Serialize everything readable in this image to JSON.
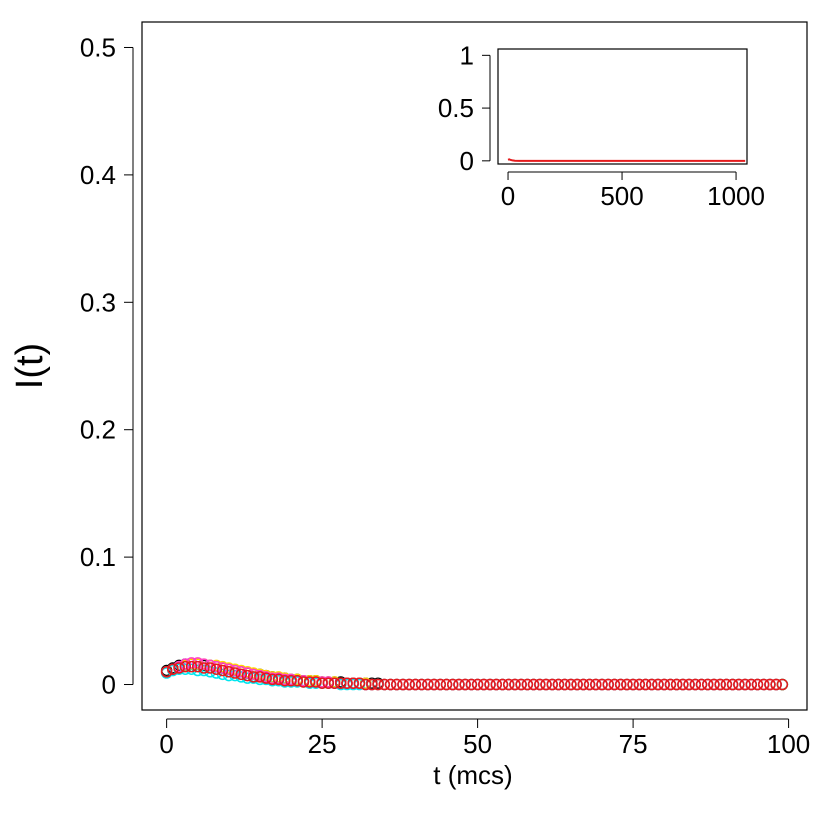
{
  "chart_data": [
    {
      "type": "scatter",
      "xlabel": "t (mcs)",
      "ylabel": "I(t)",
      "xlim": [
        -3.96,
        102.96
      ],
      "ylim": [
        -0.02,
        0.52
      ],
      "xticks": [
        0,
        25,
        50,
        75,
        100
      ],
      "yticks": [
        0.0,
        0.1,
        0.2,
        0.3,
        0.4,
        0.5
      ],
      "x": [
        0,
        1,
        2,
        3,
        4,
        5,
        6,
        7,
        8,
        9,
        10,
        11,
        12,
        13,
        14,
        15,
        16,
        17,
        18,
        19,
        20,
        21,
        22,
        23,
        24,
        25,
        26,
        27,
        28,
        29,
        30,
        31,
        32,
        33,
        34,
        35,
        36,
        37,
        38,
        39,
        40,
        41,
        42,
        43,
        44,
        45,
        46,
        47,
        48,
        49,
        50,
        51,
        52,
        53,
        54,
        55,
        56,
        57,
        58,
        59,
        60,
        61,
        62,
        63,
        64,
        65,
        66,
        67,
        68,
        69,
        70,
        71,
        72,
        73,
        74,
        75,
        76,
        77,
        78,
        79,
        80,
        81,
        82,
        83,
        84,
        85,
        86,
        87,
        88,
        89,
        90,
        91,
        92,
        93,
        94,
        95,
        96,
        97,
        98,
        99
      ],
      "series": [
        {
          "color": "#000000",
          "values": [
            0.011,
            0.013,
            0.015,
            0.016,
            0.016,
            0.016,
            0.015,
            0.015,
            0.014,
            0.013,
            0.012,
            0.011,
            0.01,
            0.009,
            0.008,
            0.008,
            0.007,
            0.006,
            0.005,
            0.005,
            0.004,
            0.004,
            0.003,
            0.003,
            0.003,
            0.002,
            0.002,
            0.002,
            0.002,
            0.001,
            0.001,
            0.001,
            0.001,
            0.001,
            0.001,
            0,
            0,
            0,
            0,
            0,
            0,
            0,
            0,
            0,
            0,
            0,
            0,
            0,
            0,
            0,
            0,
            0,
            0,
            0,
            0,
            0,
            0,
            0,
            0,
            0,
            0,
            0,
            0,
            0,
            0,
            0,
            0,
            0,
            0,
            0,
            0,
            0,
            0,
            0,
            0,
            0,
            0,
            0,
            0,
            0,
            0,
            0,
            0,
            0,
            0,
            0,
            0,
            0,
            0,
            0,
            0,
            0,
            0,
            0,
            0,
            0,
            0,
            0,
            0,
            0
          ]
        },
        {
          "color": "#ffd700",
          "values": [
            0.01,
            0.012,
            0.014,
            0.015,
            0.016,
            0.016,
            0.016,
            0.015,
            0.015,
            0.014,
            0.013,
            0.012,
            0.011,
            0.01,
            0.009,
            0.008,
            0.007,
            0.006,
            0.006,
            0.005,
            0.004,
            0.004,
            0.003,
            0.003,
            0.003,
            0.002,
            0.002,
            0.002,
            0.001,
            0.001,
            0.001,
            0.001,
            0.001,
            0,
            0,
            0,
            0,
            0,
            0,
            0,
            0,
            0,
            0,
            0,
            0,
            0,
            0,
            0,
            0,
            0,
            0,
            0,
            0,
            0,
            0,
            0,
            0,
            0,
            0,
            0,
            0,
            0,
            0,
            0,
            0,
            0,
            0,
            0,
            0,
            0,
            0,
            0,
            0,
            0,
            0,
            0,
            0,
            0,
            0,
            0,
            0,
            0,
            0,
            0,
            0,
            0,
            0,
            0,
            0,
            0,
            0,
            0,
            0,
            0,
            0,
            0,
            0,
            0,
            0,
            0
          ]
        },
        {
          "color": "#00e5ee",
          "values": [
            0.009,
            0.011,
            0.012,
            0.012,
            0.012,
            0.011,
            0.011,
            0.01,
            0.009,
            0.008,
            0.007,
            0.007,
            0.006,
            0.005,
            0.005,
            0.004,
            0.004,
            0.003,
            0.003,
            0.002,
            0.002,
            0.002,
            0.002,
            0.001,
            0.001,
            0.001,
            0.001,
            0.001,
            0,
            0,
            0,
            0,
            0,
            0,
            0,
            0,
            0,
            0,
            0,
            0,
            0,
            0,
            0,
            0,
            0,
            0,
            0,
            0,
            0,
            0,
            0,
            0,
            0,
            0,
            0,
            0,
            0,
            0,
            0,
            0,
            0,
            0,
            0,
            0,
            0,
            0,
            0,
            0,
            0,
            0,
            0,
            0,
            0,
            0,
            0,
            0,
            0,
            0,
            0,
            0,
            0,
            0,
            0,
            0,
            0,
            0,
            0,
            0,
            0,
            0,
            0,
            0,
            0,
            0,
            0,
            0,
            0,
            0,
            0,
            0
          ]
        },
        {
          "color": "#ff3ec8",
          "values": [
            0.01,
            0.012,
            0.014,
            0.016,
            0.017,
            0.017,
            0.016,
            0.015,
            0.014,
            0.013,
            0.012,
            0.011,
            0.01,
            0.009,
            0.008,
            0.007,
            0.006,
            0.005,
            0.005,
            0.004,
            0.004,
            0.003,
            0.003,
            0.002,
            0.002,
            0.002,
            0.002,
            0.001,
            0.001,
            0.001,
            0.001,
            0.001,
            0,
            0,
            0,
            0,
            0,
            0,
            0,
            0,
            0,
            0,
            0,
            0,
            0,
            0,
            0,
            0,
            0,
            0,
            0,
            0,
            0,
            0,
            0,
            0,
            0,
            0,
            0,
            0,
            0,
            0,
            0,
            0,
            0,
            0,
            0,
            0,
            0,
            0,
            0,
            0,
            0,
            0,
            0,
            0,
            0,
            0,
            0,
            0,
            0,
            0,
            0,
            0,
            0,
            0,
            0,
            0,
            0,
            0,
            0,
            0,
            0,
            0,
            0,
            0,
            0,
            0,
            0
          ]
        },
        {
          "color": "#e41a1c",
          "values": [
            0.01,
            0.012,
            0.013,
            0.014,
            0.014,
            0.014,
            0.013,
            0.013,
            0.012,
            0.011,
            0.01,
            0.009,
            0.008,
            0.007,
            0.006,
            0.006,
            0.005,
            0.004,
            0.004,
            0.003,
            0.003,
            0.003,
            0.002,
            0.002,
            0.002,
            0.001,
            0.001,
            0.001,
            0.001,
            0.001,
            0.001,
            0.001,
            0,
            0,
            0,
            0,
            0,
            0,
            0,
            0,
            0,
            0,
            0,
            0,
            0,
            0,
            0,
            0,
            0,
            0,
            0,
            0,
            0,
            0,
            0,
            0,
            0,
            0,
            0,
            0,
            0,
            0,
            0,
            0,
            0,
            0,
            0,
            0,
            0,
            0,
            0,
            0,
            0,
            0,
            0,
            0,
            0,
            0,
            0,
            0,
            0,
            0,
            0,
            0,
            0,
            0,
            0,
            0,
            0,
            0,
            0,
            0,
            0,
            0,
            0,
            0,
            0,
            0,
            0,
            0
          ]
        }
      ]
    },
    {
      "type": "line",
      "xlim": [
        -44,
        1048
      ],
      "ylim": [
        -0.03,
        1.06
      ],
      "xticks": [
        0,
        500,
        1000
      ],
      "yticks": [
        0.0,
        0.5,
        1.0
      ],
      "x": [
        0,
        5,
        10,
        20,
        30,
        50,
        100,
        200,
        400,
        600,
        800,
        1000,
        1040
      ],
      "series": [
        {
          "color": "#e41a1c",
          "values": [
            0.01,
            0.014,
            0.01,
            0.004,
            0.001,
            0,
            0,
            0,
            0,
            0,
            0,
            0,
            0
          ]
        }
      ]
    }
  ]
}
